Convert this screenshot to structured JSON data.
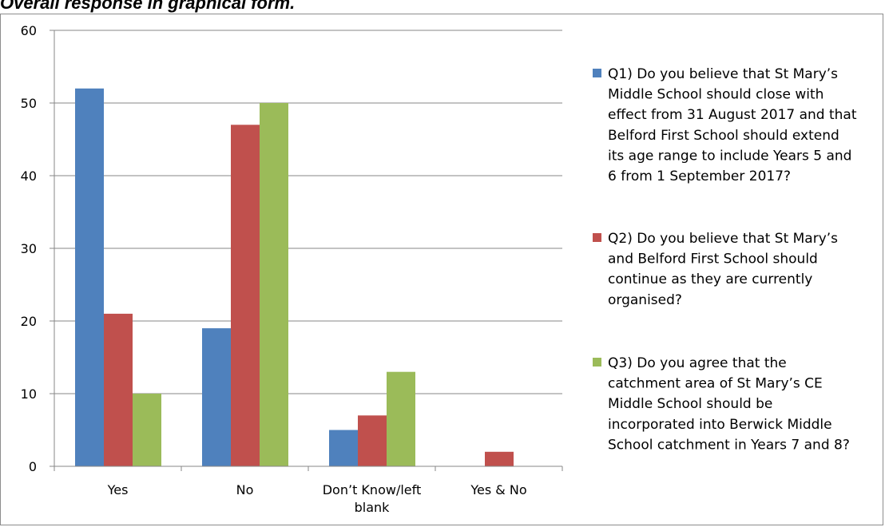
{
  "heading": "Overall response in graphical form.",
  "chart_data": {
    "type": "bar",
    "categories": [
      [
        "Yes"
      ],
      [
        "No"
      ],
      [
        "Don’t Know/left",
        "blank"
      ],
      [
        "Yes & No"
      ]
    ],
    "ylim": [
      0,
      60
    ],
    "yticks": [
      0,
      10,
      20,
      30,
      40,
      50,
      60
    ],
    "grid": true,
    "legend_position": "right",
    "series": [
      {
        "name": [
          "Q1) Do you believe that St Mary’s",
          "Middle School should close with",
          "effect from 31 August 2017 and that",
          "Belford First School should extend",
          "its age range to include Years 5 and",
          "6 from 1 September 2017?"
        ],
        "color": "#4f81bd",
        "values": [
          52,
          19,
          5,
          0
        ]
      },
      {
        "name": [
          "Q2) Do you believe that St Mary’s",
          "and Belford First School should",
          "continue as they are currently",
          "organised?"
        ],
        "color": "#c0504d",
        "values": [
          21,
          47,
          7,
          2
        ]
      },
      {
        "name": [
          "Q3) Do you agree that the",
          "catchment area of St Mary’s CE",
          "Middle School should be",
          "incorporated into Berwick Middle",
          "School catchment in Years 7 and 8?"
        ],
        "color": "#9bbb59",
        "values": [
          10,
          50,
          13,
          0
        ]
      }
    ]
  }
}
